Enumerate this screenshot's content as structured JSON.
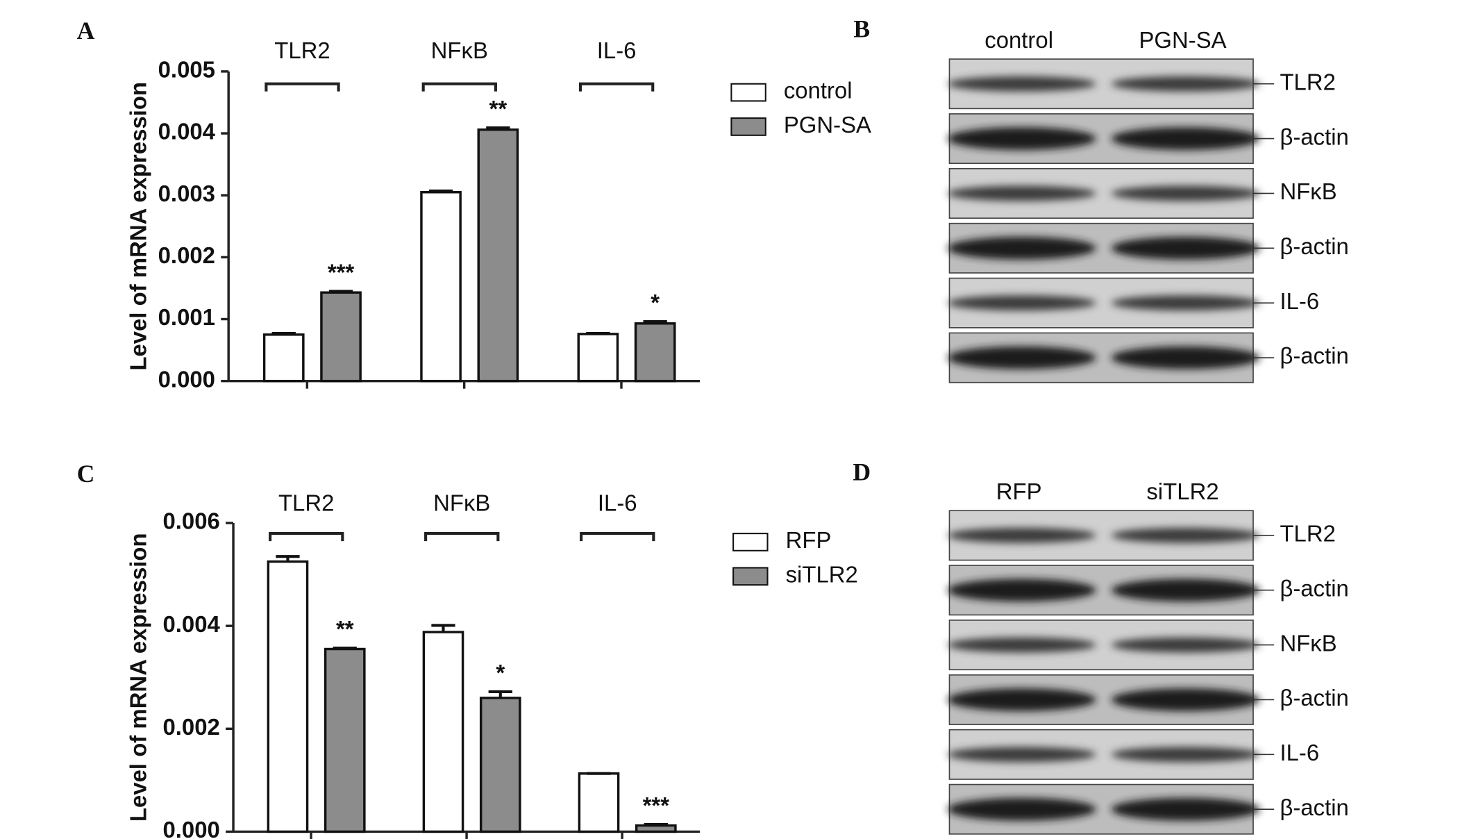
{
  "chart_data": [
    {
      "type": "bar",
      "panel": "A",
      "y_label": "Level of mRNA expression",
      "categories": [
        "TLR2",
        "NFκB",
        "IL-6"
      ],
      "series": [
        {
          "name": "control",
          "color": "#ffffff",
          "values": [
            0.00075,
            0.00305,
            0.00076
          ],
          "errors": [
            2e-05,
            2e-05,
            1e-05
          ]
        },
        {
          "name": "PGN-SA",
          "color": "#8c8c8c",
          "values": [
            0.00143,
            0.00406,
            0.00093
          ],
          "errors": [
            2e-05,
            3e-05,
            3e-05
          ]
        }
      ],
      "significance": [
        "***",
        "**",
        "*"
      ],
      "ylim": [
        0,
        0.005
      ],
      "yticks": [
        {
          "value": 0,
          "label": "0.000"
        },
        0.001,
        0.002,
        0.003,
        0.004,
        0.005
      ]
    },
    {
      "type": "bar",
      "panel": "C",
      "y_label": "Level of mRNA expression",
      "categories": [
        "TLR2",
        "NFκB",
        "IL-6"
      ],
      "series": [
        {
          "name": "RFP",
          "color": "#ffffff",
          "values": [
            0.00525,
            0.00388,
            0.00113
          ],
          "errors": [
            0.0001,
            0.00013,
            0
          ]
        },
        {
          "name": "siTLR2",
          "color": "#8c8c8c",
          "values": [
            0.00355,
            0.0026,
            0.00012
          ],
          "errors": [
            2e-05,
            0.00012,
            2e-05
          ]
        }
      ],
      "significance": [
        "**",
        "*",
        "***"
      ],
      "ylim": [
        0,
        0.006
      ],
      "yticks": [
        {
          "value": 0,
          "label": "0.000"
        },
        0.002,
        0.004,
        0.006
      ]
    }
  ],
  "blots": [
    {
      "panel": "B",
      "lanes": [
        "control",
        "PGN-SA"
      ],
      "bands": [
        "TLR2",
        "β-actin",
        "NFκB",
        "β-actin",
        "IL-6",
        "β-actin"
      ]
    },
    {
      "panel": "D",
      "lanes": [
        "RFP",
        "siTLR2"
      ],
      "bands": [
        "TLR2",
        "β-actin",
        "NFκB",
        "β-actin",
        "IL-6",
        "β-actin"
      ]
    }
  ]
}
